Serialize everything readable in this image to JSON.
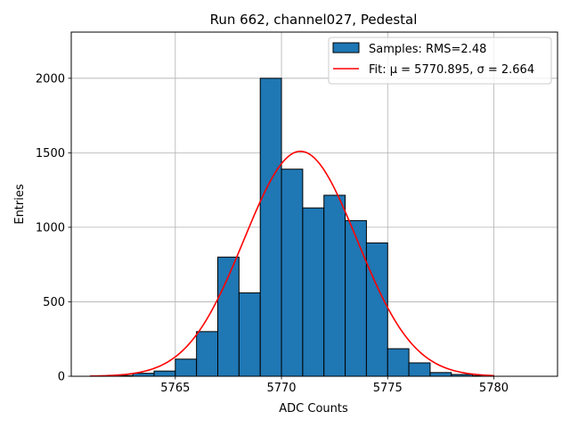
{
  "chart_data": {
    "type": "histogram",
    "title": "Run 662, channel027, Pedestal",
    "xlabel": "ADC Counts",
    "ylabel": "Entries",
    "xlim": [
      5760.1,
      5783.0
    ],
    "ylim": [
      0,
      2310
    ],
    "xticks": [
      5765,
      5770,
      5775,
      5780
    ],
    "yticks": [
      0,
      500,
      1000,
      1500,
      2000
    ],
    "grid": true,
    "legend_position": "top-right",
    "bin_width": 1,
    "bins": [
      {
        "left": 5761,
        "count": 3
      },
      {
        "left": 5762,
        "count": 5
      },
      {
        "left": 5763,
        "count": 20
      },
      {
        "left": 5764,
        "count": 35
      },
      {
        "left": 5765,
        "count": 115
      },
      {
        "left": 5766,
        "count": 300
      },
      {
        "left": 5767,
        "count": 800
      },
      {
        "left": 5768,
        "count": 560
      },
      {
        "left": 5769,
        "count": 2000
      },
      {
        "left": 5770,
        "count": 1390
      },
      {
        "left": 5771,
        "count": 1130
      },
      {
        "left": 5772,
        "count": 1215
      },
      {
        "left": 5773,
        "count": 1045
      },
      {
        "left": 5774,
        "count": 895
      },
      {
        "left": 5775,
        "count": 185
      },
      {
        "left": 5776,
        "count": 90
      },
      {
        "left": 5777,
        "count": 25
      },
      {
        "left": 5778,
        "count": 12
      },
      {
        "left": 5779,
        "count": 4
      }
    ],
    "fit": {
      "mu": 5770.895,
      "sigma": 2.664,
      "amplitude": 1510,
      "x_range": [
        5761,
        5780
      ]
    },
    "legend": [
      {
        "label": "Samples: RMS=2.48",
        "kind": "patch",
        "color": "#1f77b4"
      },
      {
        "label": "Fit: μ = 5770.895, σ = 2.664",
        "kind": "line",
        "color": "#ff0000"
      }
    ]
  }
}
